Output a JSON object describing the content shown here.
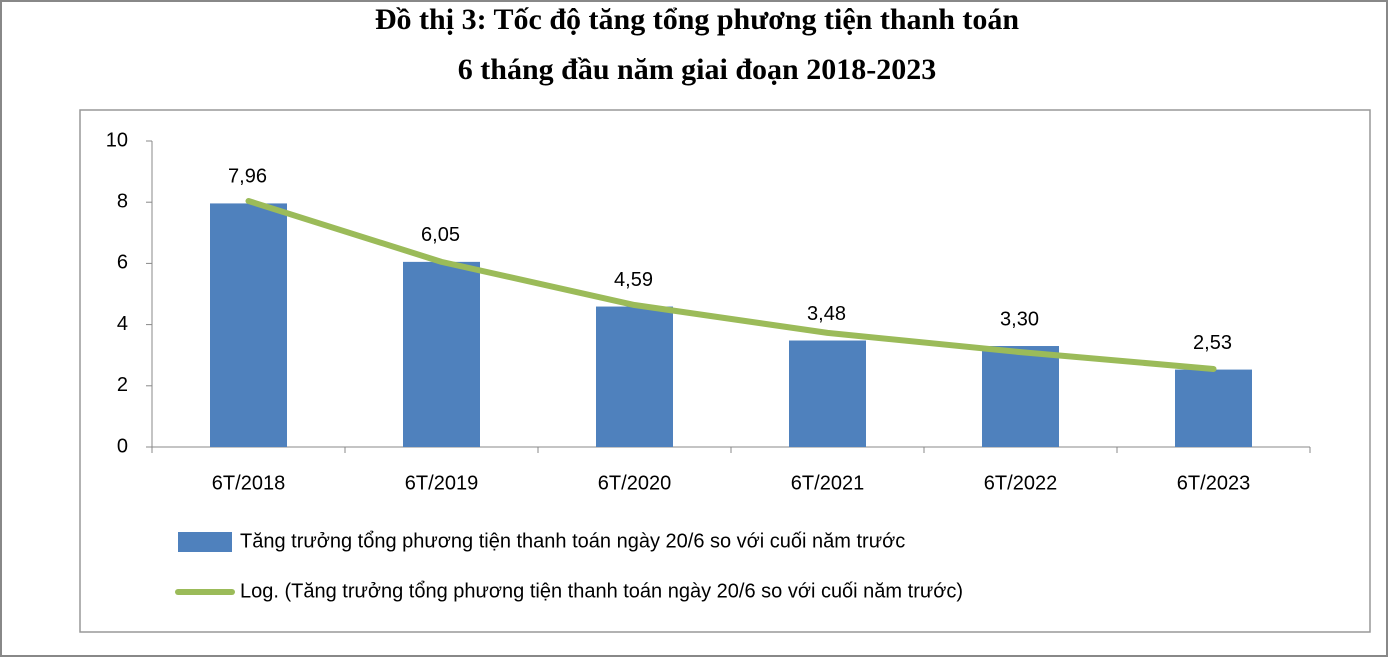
{
  "chart_data": {
    "type": "bar",
    "title": "Đồ thị 3: Tốc độ tăng tổng phương tiện thanh toán",
    "subtitle": "6 tháng đầu năm giai đoạn 2018-2023",
    "categories": [
      "6T/2018",
      "6T/2019",
      "6T/2020",
      "6T/2021",
      "6T/2022",
      "6T/2023"
    ],
    "series": [
      {
        "name": "Tăng trưởng tổng phương tiện thanh toán ngày 20/6 so với cuối năm trước",
        "color": "#4f81bd",
        "values": [
          7.96,
          6.05,
          4.59,
          3.48,
          3.3,
          2.53
        ],
        "value_labels": [
          "7,96",
          "6,05",
          "4,59",
          "3,48",
          "3,30",
          "2,53"
        ]
      },
      {
        "name": "Log. (Tăng trưởng tổng phương tiện thanh toán ngày 20/6 so với cuối năm trước)",
        "color": "#9bbb59",
        "type": "line",
        "values": [
          8.04,
          6.05,
          4.64,
          3.73,
          3.1,
          2.55
        ]
      }
    ],
    "ylim": [
      0,
      10
    ],
    "yticks": [
      0,
      2,
      4,
      6,
      8,
      10
    ],
    "grid": false
  }
}
